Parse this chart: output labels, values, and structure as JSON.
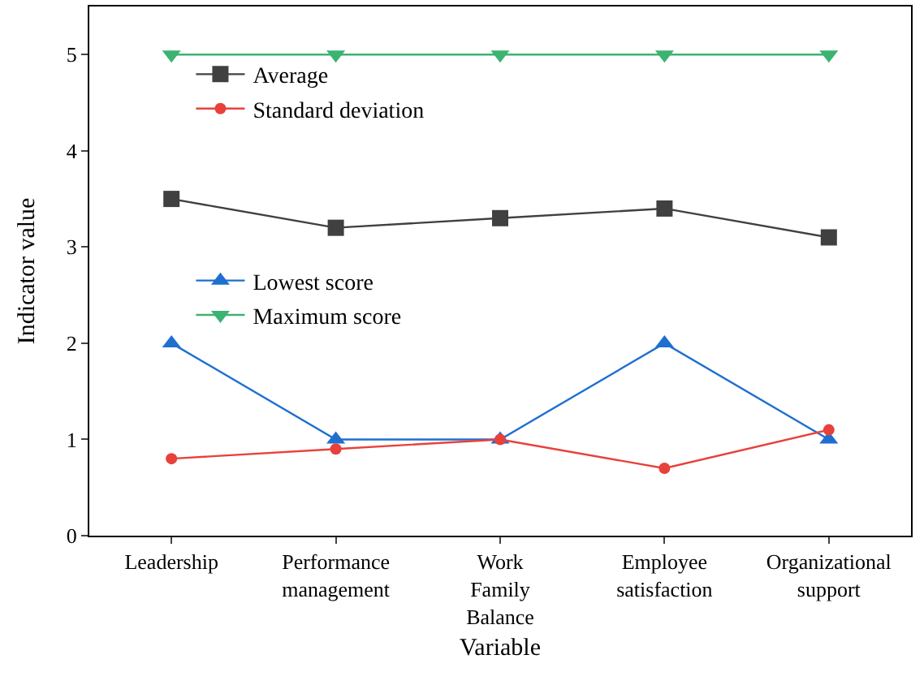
{
  "chart_data": {
    "type": "line",
    "xlabel": "Variable",
    "ylabel": "Indicator value",
    "categories": [
      "Leadership",
      "Performance management",
      "Work Family Balance",
      "Employee satisfaction",
      "Organizational support"
    ],
    "series": [
      {
        "name": "Average",
        "color": "#404040",
        "marker": "square",
        "values": [
          3.5,
          3.2,
          3.3,
          3.4,
          3.1
        ]
      },
      {
        "name": "Standard deviation",
        "color": "#e8413b",
        "marker": "circle",
        "values": [
          0.8,
          0.9,
          1.0,
          0.7,
          1.1
        ]
      },
      {
        "name": "Lowest score",
        "color": "#1f6fd0",
        "marker": "triangle",
        "values": [
          2,
          1,
          1,
          2,
          1
        ]
      },
      {
        "name": "Maximum score",
        "color": "#3cb371",
        "marker": "triangle-down",
        "values": [
          5,
          5,
          5,
          5,
          5
        ]
      }
    ],
    "ylim": [
      0,
      5.5
    ],
    "yticks": [
      0,
      1,
      2,
      3,
      4,
      5
    ],
    "legend": "top left",
    "line_style": "solid"
  }
}
